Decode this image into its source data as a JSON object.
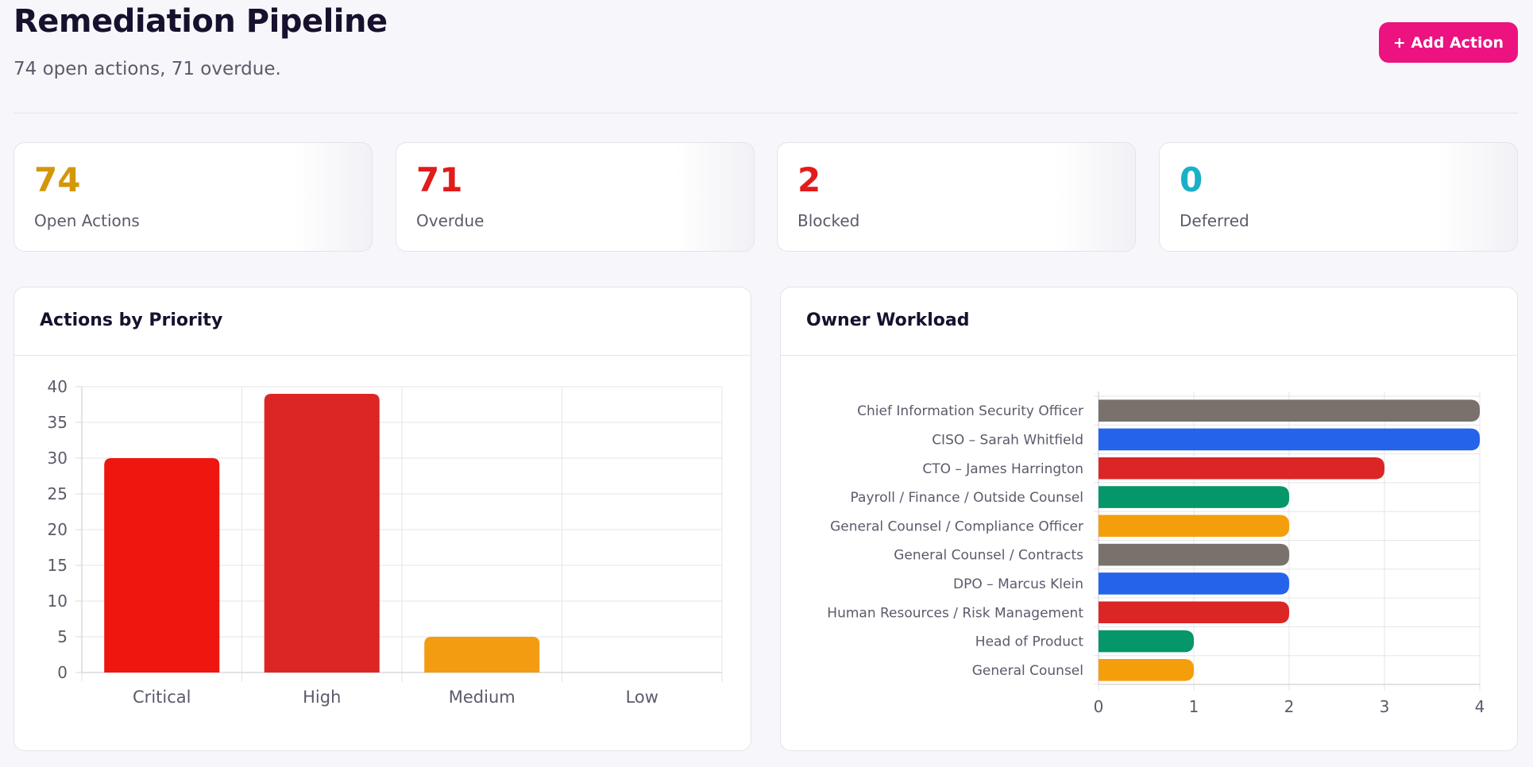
{
  "header": {
    "title": "Remediation Pipeline",
    "subtitle": "74 open actions, 71 overdue.",
    "add_button": {
      "icon": "plus-icon",
      "label": "+ Add Action",
      "color": "#ec1280"
    }
  },
  "stats": [
    {
      "value": "74",
      "label": "Open Actions",
      "color": "#d4970a"
    },
    {
      "value": "71",
      "label": "Overdue",
      "color": "#e21b1b"
    },
    {
      "value": "2",
      "label": "Blocked",
      "color": "#e21b1b"
    },
    {
      "value": "0",
      "label": "Deferred",
      "color": "#1ab0c8"
    }
  ],
  "panels": {
    "priority": {
      "title": "Actions by Priority"
    },
    "workload": {
      "title": "Owner Workload"
    }
  },
  "chart_data": [
    {
      "type": "bar",
      "title": "Actions by Priority",
      "categories": [
        "Critical",
        "High",
        "Medium",
        "Low"
      ],
      "values": [
        30,
        39,
        5,
        0
      ],
      "colors": [
        "#ef1610",
        "#dc2626",
        "#f39c12",
        "#9ca3af"
      ],
      "ylim": [
        0,
        40
      ],
      "yticks": [
        0,
        5,
        10,
        15,
        20,
        25,
        30,
        35,
        40
      ],
      "grid": true,
      "legend": "none"
    },
    {
      "type": "bar",
      "orientation": "horizontal",
      "title": "Owner Workload",
      "categories": [
        "Chief Information Security Officer",
        "CISO – Sarah Whitfield",
        "CTO – James Harrington",
        "Payroll / Finance / Outside Counsel",
        "General Counsel / Compliance Officer",
        "General Counsel / Contracts",
        "DPO – Marcus Klein",
        "Human Resources / Risk Management",
        "Head of Product",
        "General Counsel"
      ],
      "values": [
        4,
        4,
        3,
        2,
        2,
        2,
        2,
        2,
        1,
        1
      ],
      "colors": [
        "#78716c",
        "#2563eb",
        "#dc2626",
        "#059669",
        "#f59e0b",
        "#78716c",
        "#2563eb",
        "#dc2626",
        "#059669",
        "#f59e0b"
      ],
      "xlim": [
        0,
        4
      ],
      "xticks": [
        0,
        1,
        2,
        3,
        4
      ],
      "grid": true,
      "legend": "none"
    }
  ]
}
